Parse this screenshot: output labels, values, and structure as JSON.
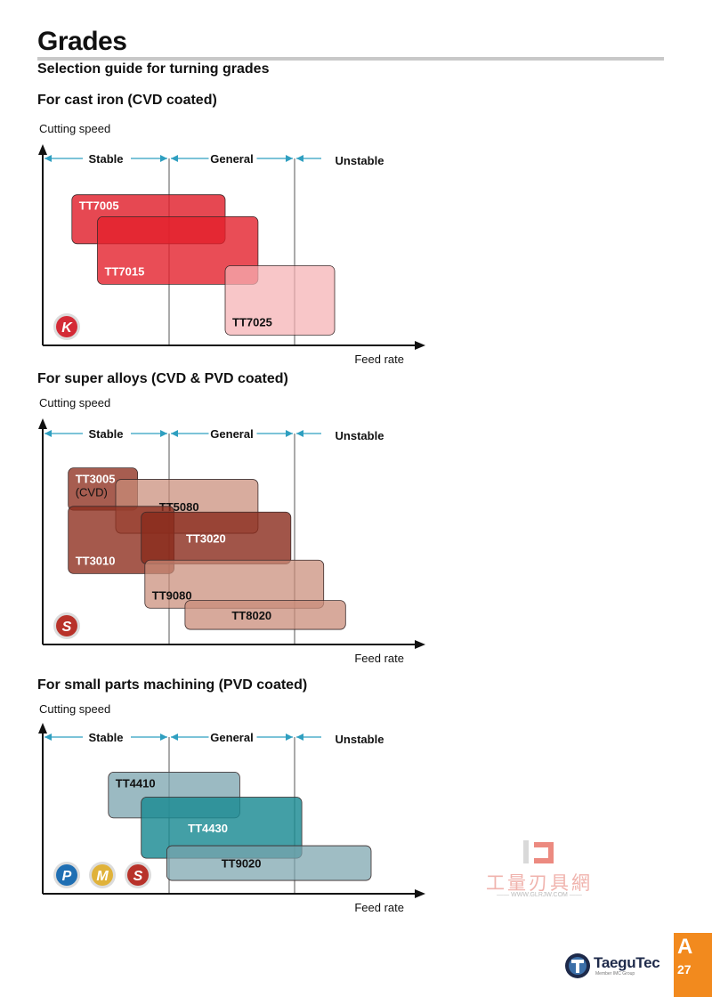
{
  "page": {
    "title": "Grades",
    "subtitle": "Selection guide for turning grades"
  },
  "charts": [
    {
      "title": "For cast iron (CVD coated)",
      "ylabel": "Cutting speed",
      "xlabel": "Feed rate",
      "zones": [
        "Stable",
        "General",
        "Unstable"
      ],
      "iso": [
        {
          "letter": "K",
          "color": "#d42a36"
        }
      ],
      "grades": [
        {
          "label": "TT7005",
          "note": "",
          "feed": [
            0.08,
            0.5
          ],
          "speed": [
            0.58,
            0.87
          ],
          "fill": "#e0202c",
          "opacity": 0.82,
          "text": "#ffffff",
          "text_pos": "top"
        },
        {
          "label": "TT7015",
          "note": "",
          "feed": [
            0.15,
            0.59
          ],
          "speed": [
            0.34,
            0.74
          ],
          "fill": "#e4202c",
          "opacity": 0.8,
          "text": "#ffffff",
          "text_pos": "bottom"
        },
        {
          "label": "TT7025",
          "note": "",
          "feed": [
            0.5,
            0.8
          ],
          "speed": [
            0.04,
            0.45
          ],
          "fill": "#f5b0b3",
          "opacity": 0.72,
          "text": "#111111",
          "text_pos": "bottom"
        }
      ]
    },
    {
      "title": "For super alloys (CVD & PVD coated)",
      "ylabel": "Cutting speed",
      "xlabel": "Feed rate",
      "zones": [
        "Stable",
        "General",
        "Unstable"
      ],
      "iso": [
        {
          "letter": "S",
          "color": "#b8322a"
        }
      ],
      "grades": [
        {
          "label": "TT3005",
          "note": "(CVD)",
          "feed": [
            0.07,
            0.26
          ],
          "speed": [
            0.68,
            0.9
          ],
          "fill": "#8e2f1f",
          "opacity": 0.78,
          "text": "#ffffff",
          "text_pos": "top"
        },
        {
          "label": "TT5080",
          "note": "",
          "feed": [
            0.2,
            0.59
          ],
          "speed": [
            0.56,
            0.84
          ],
          "fill": "#c98c79",
          "opacity": 0.72,
          "text": "#111111",
          "text_pos": "middle"
        },
        {
          "label": "TT3010",
          "note": "",
          "feed": [
            0.07,
            0.36
          ],
          "speed": [
            0.35,
            0.7
          ],
          "fill": "#8e2f1f",
          "opacity": 0.8,
          "text": "#ffffff",
          "text_pos": "bottom"
        },
        {
          "label": "TT3020",
          "note": "",
          "feed": [
            0.27,
            0.68
          ],
          "speed": [
            0.4,
            0.67
          ],
          "fill": "#8a2b1c",
          "opacity": 0.8,
          "text": "#ffffff",
          "text_pos": "middle"
        },
        {
          "label": "TT9080",
          "note": "",
          "feed": [
            0.28,
            0.77
          ],
          "speed": [
            0.17,
            0.42
          ],
          "fill": "#c98c79",
          "opacity": 0.72,
          "text": "#111111",
          "text_pos": "bottom"
        },
        {
          "label": "TT8020",
          "note": "",
          "feed": [
            0.39,
            0.83
          ],
          "speed": [
            0.06,
            0.21
          ],
          "fill": "#c98c79",
          "opacity": 0.75,
          "text": "#111111",
          "text_pos": "middle"
        }
      ]
    },
    {
      "title": "For small parts machining (PVD coated)",
      "ylabel": "Cutting speed",
      "xlabel": "Feed rate",
      "zones": [
        "Stable",
        "General",
        "Unstable"
      ],
      "iso": [
        {
          "letter": "P",
          "color": "#1f6fb3"
        },
        {
          "letter": "M",
          "color": "#e0b23a"
        },
        {
          "letter": "S",
          "color": "#b8322a"
        }
      ],
      "grades": [
        {
          "label": "TT4410",
          "note": "",
          "feed": [
            0.18,
            0.54
          ],
          "speed": [
            0.52,
            0.85
          ],
          "fill": "#7aa3ad",
          "opacity": 0.75,
          "text": "#111111",
          "text_pos": "top"
        },
        {
          "label": "TT4430",
          "note": "",
          "feed": [
            0.27,
            0.71
          ],
          "speed": [
            0.23,
            0.67
          ],
          "fill": "#1a8a93",
          "opacity": 0.82,
          "text": "#ffffff",
          "text_pos": "middle"
        },
        {
          "label": "TT9020",
          "note": "",
          "feed": [
            0.34,
            0.9
          ],
          "speed": [
            0.07,
            0.32
          ],
          "fill": "#7aa3ad",
          "opacity": 0.72,
          "text": "#111111",
          "text_pos": "middle"
        }
      ]
    }
  ],
  "watermark": {
    "chars": "工量刃具網",
    "url": "—— WWW.GLRJW.COM ——"
  },
  "brand": {
    "name": "TaeguTec",
    "tagline": "Member IMC Group"
  },
  "page_tab": {
    "letter": "A",
    "number": "27"
  }
}
